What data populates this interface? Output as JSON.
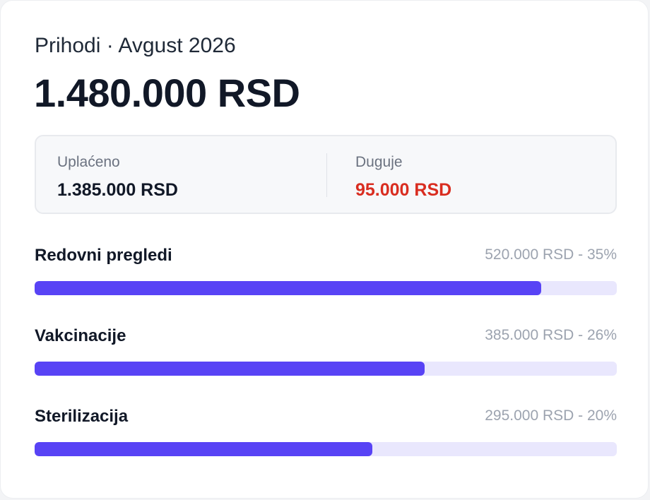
{
  "header": {
    "title": "Prihodi · Avgust 2026",
    "total": "1.480.000 RSD"
  },
  "summary": {
    "paid": {
      "label": "Uplaćeno",
      "value": "1.385.000 RSD"
    },
    "owed": {
      "label": "Duguje",
      "value": "95.000 RSD"
    }
  },
  "categories": [
    {
      "label": "Redovni pregledi",
      "value_text": "520.000 RSD - 35%",
      "fill_fraction": 0.87
    },
    {
      "label": "Vakcinacije",
      "value_text": "385.000 RSD - 26%",
      "fill_fraction": 0.67
    },
    {
      "label": "Sterilizacija",
      "value_text": "295.000 RSD - 20%",
      "fill_fraction": 0.58
    }
  ],
  "colors": {
    "accent": "#5843f5",
    "track": "#e9e7fd",
    "debt": "#d92d20"
  }
}
